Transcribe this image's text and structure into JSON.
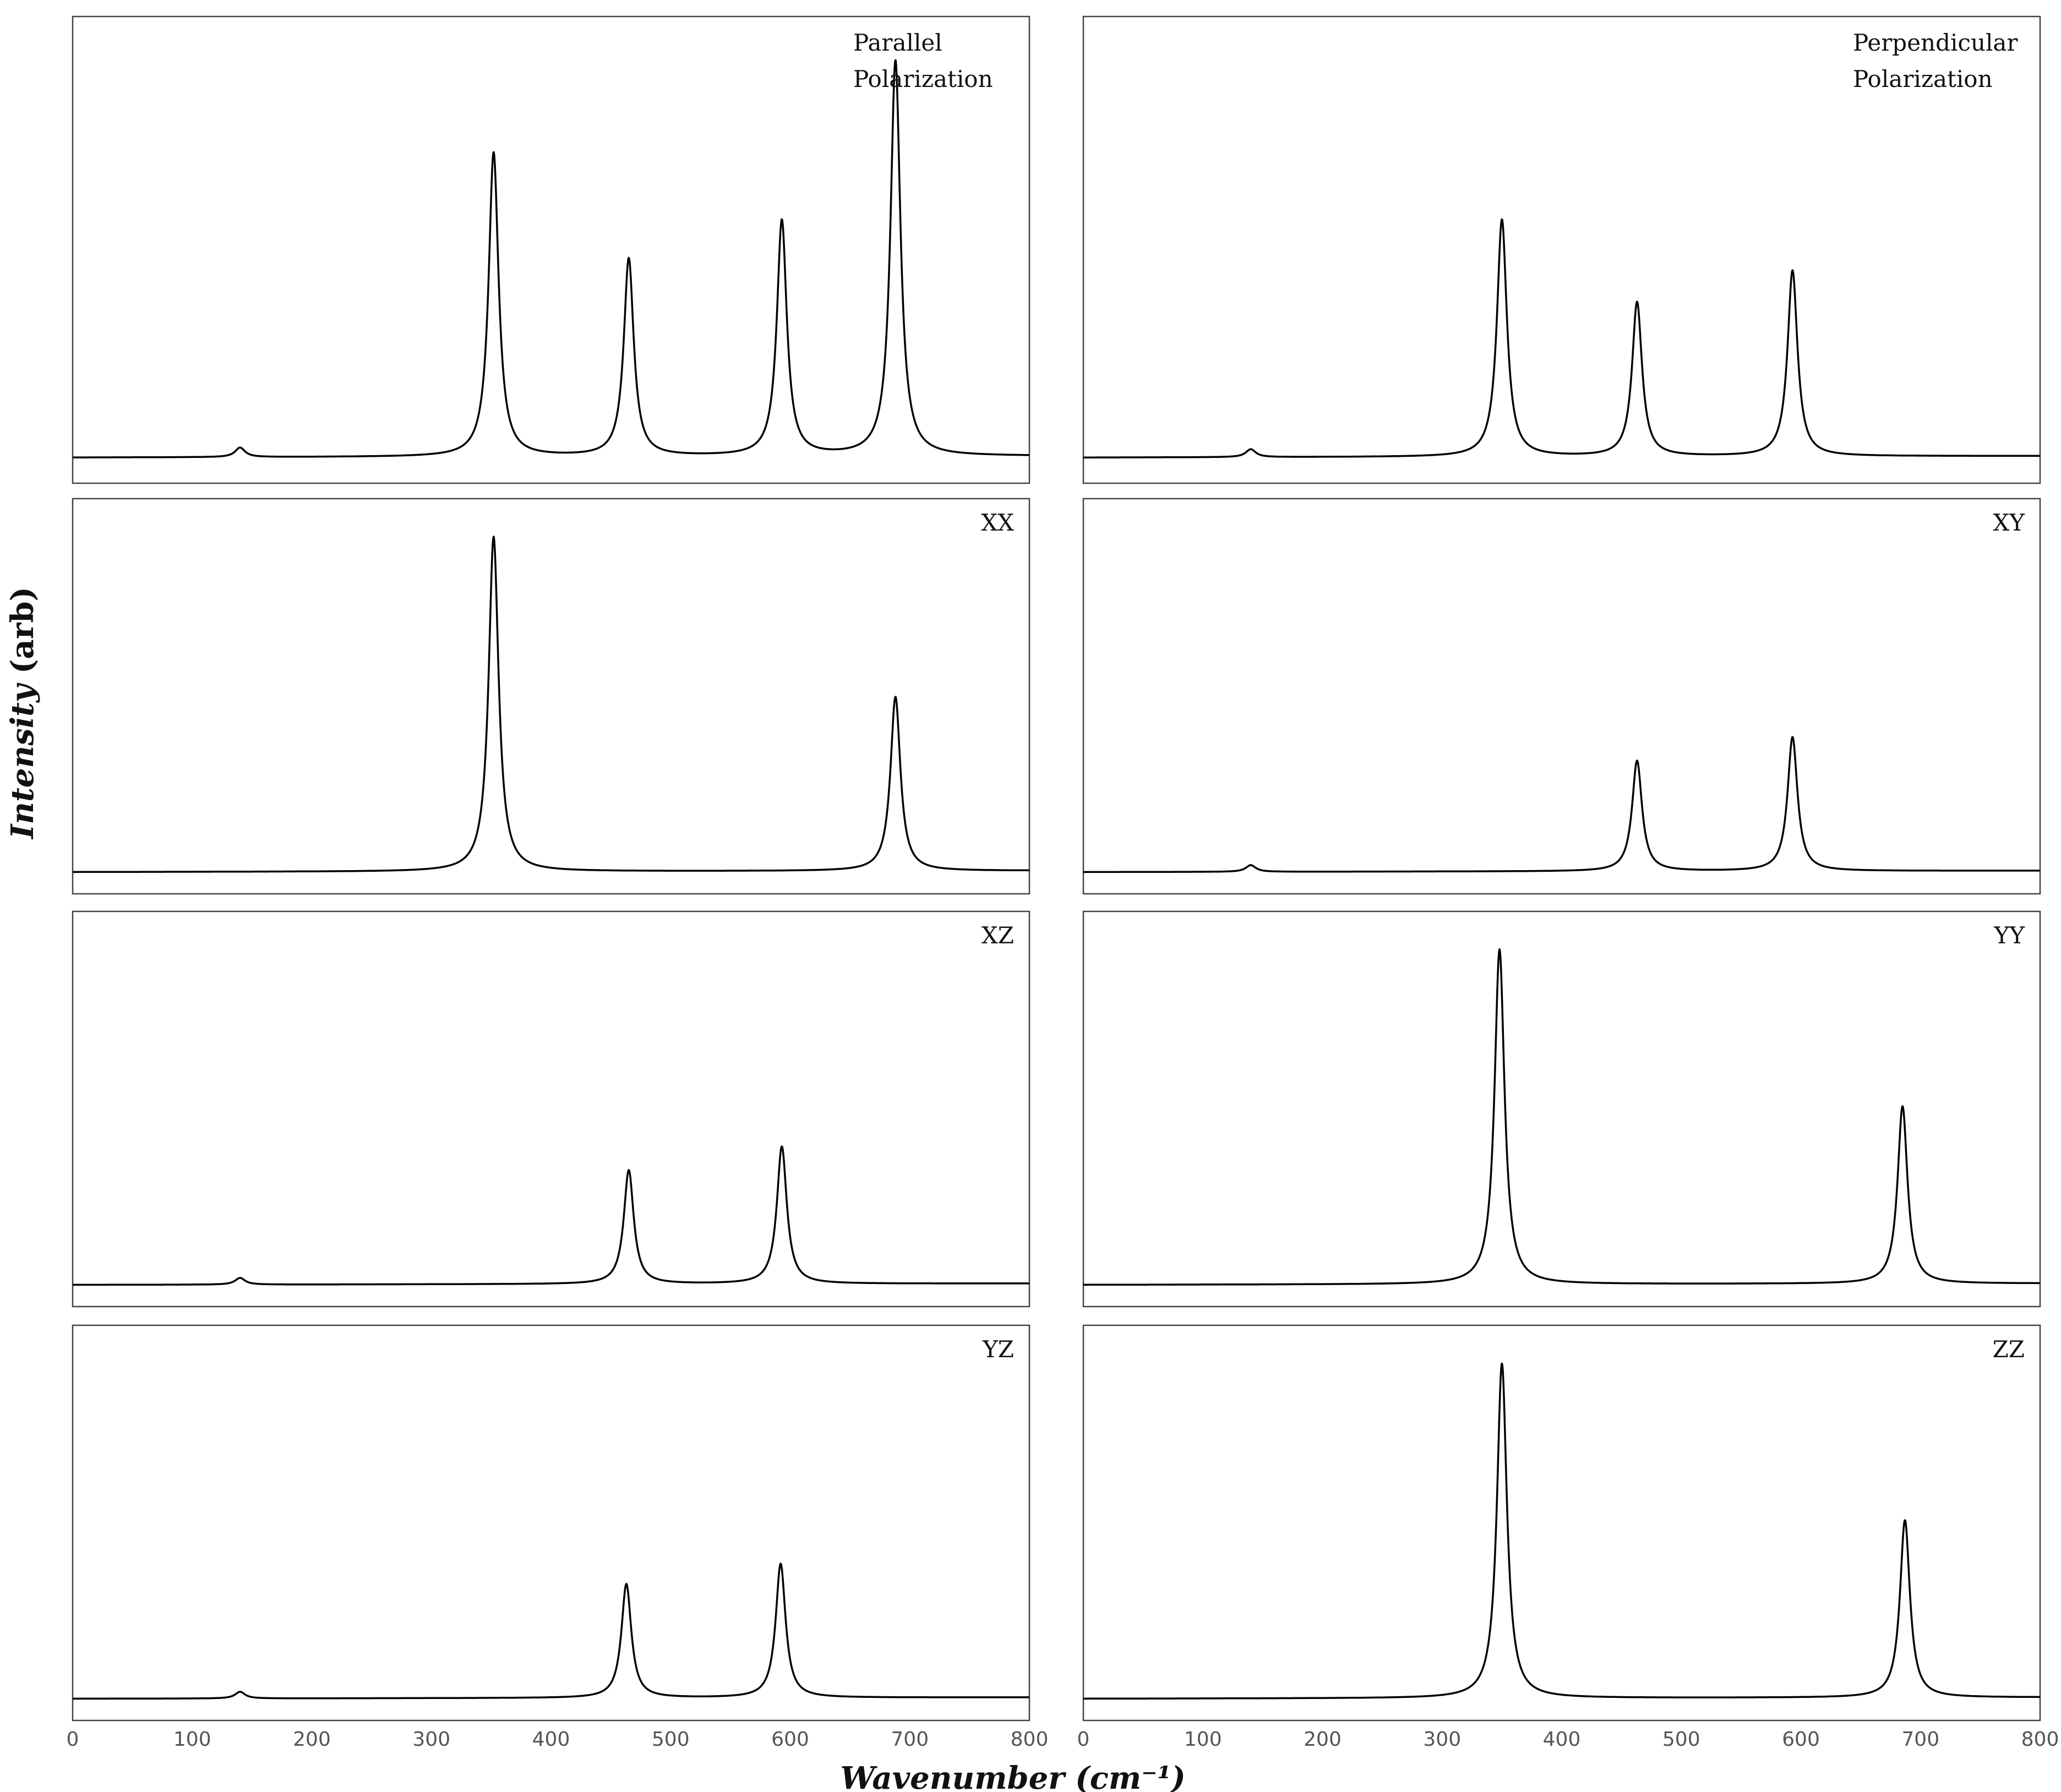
{
  "figure": {
    "ylabel_italic": "Intensity",
    "ylabel_rest": " (arb)",
    "xlabel": "Wavenumber (cm⁻¹)",
    "line_color": "#000000",
    "frame_color": "#444444"
  },
  "chart_data": [
    {
      "type": "line",
      "label_lines": [
        "Parallel",
        "Polarization"
      ],
      "peaks": [
        {
          "x": 140,
          "h": 0.025
        },
        {
          "x": 352,
          "h": 0.8
        },
        {
          "x": 465,
          "h": 0.52
        },
        {
          "x": 593,
          "h": 0.62
        },
        {
          "x": 688,
          "h": 1.04
        }
      ],
      "xlim": [
        0,
        800
      ],
      "show_xticks": false
    },
    {
      "type": "line",
      "label_lines": [
        "Perpendicular",
        "Polarization"
      ],
      "peaks": [
        {
          "x": 140,
          "h": 0.02
        },
        {
          "x": 350,
          "h": 0.6
        },
        {
          "x": 463,
          "h": 0.39
        },
        {
          "x": 593,
          "h": 0.47
        }
      ],
      "xlim": [
        0,
        800
      ],
      "show_xticks": false
    },
    {
      "type": "line",
      "label_lines": [
        "XX"
      ],
      "peaks": [
        {
          "x": 352,
          "h": 1.0
        },
        {
          "x": 688,
          "h": 0.52
        }
      ],
      "xlim": [
        0,
        800
      ],
      "show_xticks": false
    },
    {
      "type": "line",
      "label_lines": [
        "XY"
      ],
      "peaks": [
        {
          "x": 140,
          "h": 0.02
        },
        {
          "x": 463,
          "h": 0.33
        },
        {
          "x": 593,
          "h": 0.4
        }
      ],
      "xlim": [
        0,
        800
      ],
      "show_xticks": false
    },
    {
      "type": "line",
      "label_lines": [
        "XZ"
      ],
      "peaks": [
        {
          "x": 140,
          "h": 0.02
        },
        {
          "x": 465,
          "h": 0.34
        },
        {
          "x": 593,
          "h": 0.41
        }
      ],
      "xlim": [
        0,
        800
      ],
      "show_xticks": false
    },
    {
      "type": "line",
      "label_lines": [
        "YY"
      ],
      "peaks": [
        {
          "x": 348,
          "h": 1.0
        },
        {
          "x": 685,
          "h": 0.53
        }
      ],
      "xlim": [
        0,
        800
      ],
      "show_xticks": false
    },
    {
      "type": "line",
      "label_lines": [
        "YZ"
      ],
      "peaks": [
        {
          "x": 140,
          "h": 0.02
        },
        {
          "x": 463,
          "h": 0.34
        },
        {
          "x": 592,
          "h": 0.4
        }
      ],
      "xlim": [
        0,
        800
      ],
      "xticks": [
        "0",
        "100",
        "200",
        "300",
        "400",
        "500",
        "600",
        "700",
        "800"
      ],
      "show_xticks": true
    },
    {
      "type": "line",
      "label_lines": [
        "ZZ"
      ],
      "peaks": [
        {
          "x": 350,
          "h": 1.0
        },
        {
          "x": 687,
          "h": 0.53
        }
      ],
      "xlim": [
        0,
        800
      ],
      "xticks": [
        "0",
        "100",
        "200",
        "300",
        "400",
        "500",
        "600",
        "700",
        "800"
      ],
      "show_xticks": true
    }
  ]
}
